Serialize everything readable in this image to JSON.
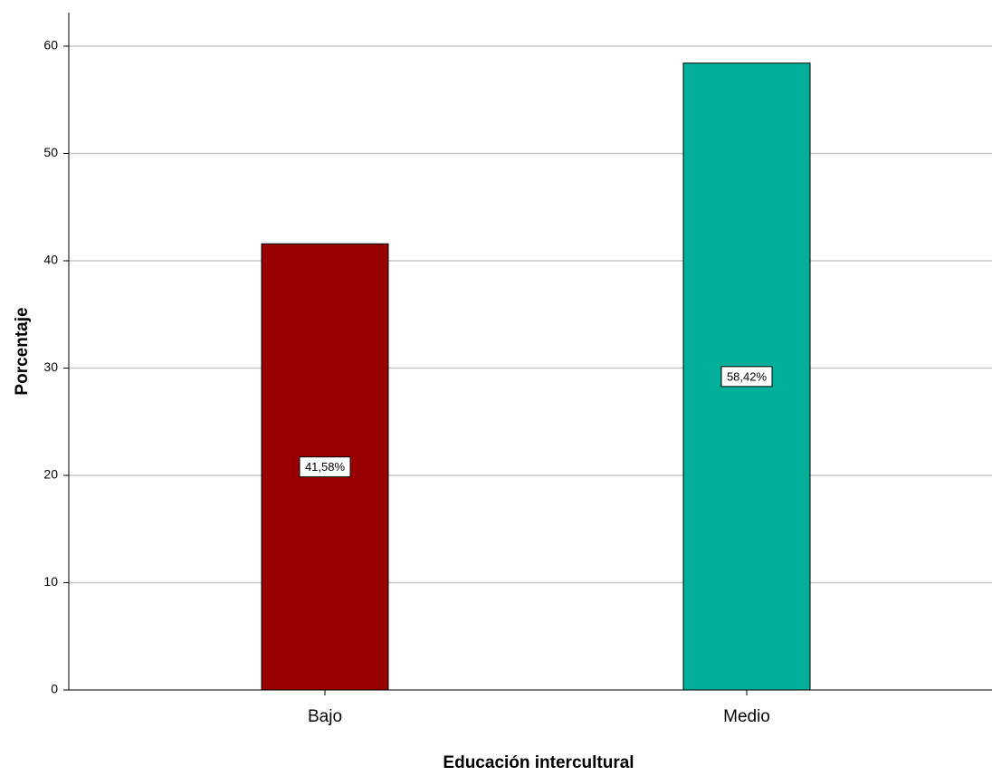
{
  "chart_data": {
    "type": "bar",
    "categories": [
      "Bajo",
      "Medio"
    ],
    "values": [
      41.58,
      58.42
    ],
    "data_labels": [
      "41,58%",
      "58,42%"
    ],
    "colors": [
      "#990000",
      "#00b09b"
    ],
    "xlabel": "Educación intercultural",
    "ylabel": "Porcentaje",
    "ylim": [
      0,
      60
    ],
    "yticks": [
      0,
      10,
      20,
      30,
      40,
      50,
      60
    ],
    "grid": true
  }
}
